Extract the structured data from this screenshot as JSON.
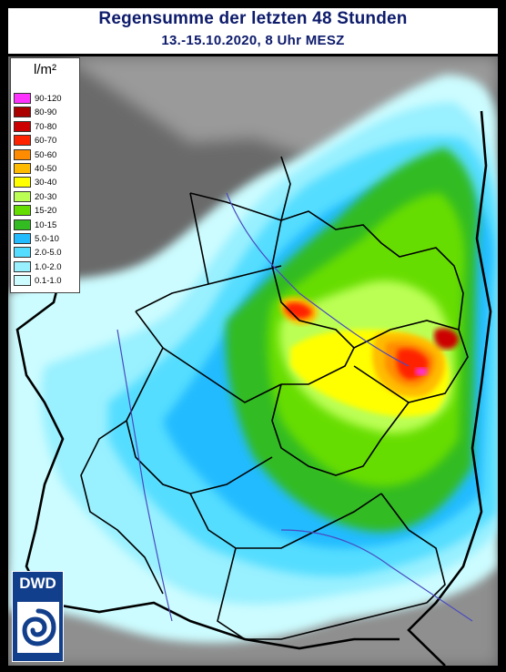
{
  "header": {
    "title": "Regensumme der letzten 48 Stunden",
    "subtitle": "13.-15.10.2020, 8 Uhr MESZ"
  },
  "legend": {
    "unit": "l/m²",
    "items": [
      {
        "label": "90-120",
        "color": "#ff33ff"
      },
      {
        "label": "80-90",
        "color": "#aa0000"
      },
      {
        "label": "70-80",
        "color": "#cc0000"
      },
      {
        "label": "60-70",
        "color": "#ff2200"
      },
      {
        "label": "50-60",
        "color": "#ff8c00"
      },
      {
        "label": "40-50",
        "color": "#ffbb00"
      },
      {
        "label": "30-40",
        "color": "#ffff00"
      },
      {
        "label": "20-30",
        "color": "#bbff55"
      },
      {
        "label": "15-20",
        "color": "#66dd00"
      },
      {
        "label": "10-15",
        "color": "#33bb22"
      },
      {
        "label": "5.0-10",
        "color": "#22bbff"
      },
      {
        "label": "2.0-5.0",
        "color": "#55ddff"
      },
      {
        "label": "1.0-2.0",
        "color": "#99f0ff"
      },
      {
        "label": "0.1-1.0",
        "color": "#ccfcff"
      }
    ]
  },
  "logo": {
    "text": "DWD",
    "bg_color": "#123f8c"
  }
}
